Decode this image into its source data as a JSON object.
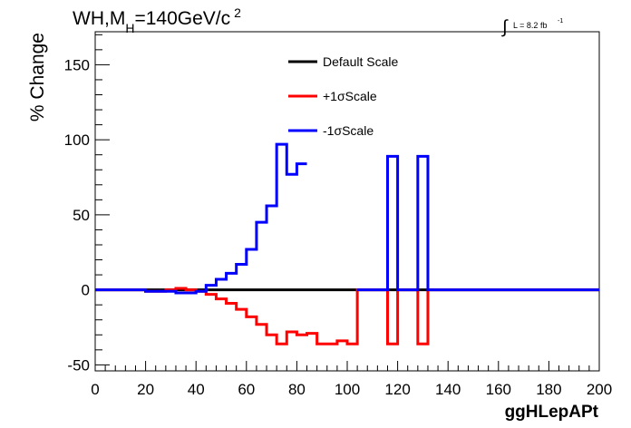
{
  "title_parts": {
    "main": "WH,M",
    "sub": "H",
    "rest": "=140GeV/c",
    "sup": "2"
  },
  "lumi": {
    "integral": "∫",
    "text": "L = 8.2 fb",
    "sup": "-1"
  },
  "chart_data": {
    "type": "line",
    "xlabel": "ggHLepAPt",
    "ylabel": "% Change",
    "xlim": [
      0,
      200
    ],
    "ylim": [
      -54,
      172
    ],
    "x_ticks": [
      0,
      20,
      40,
      60,
      80,
      100,
      120,
      140,
      160,
      180,
      200
    ],
    "y_ticks": [
      -50,
      0,
      50,
      100,
      150
    ],
    "legend_position": "top-center",
    "series": [
      {
        "name": "Default Scale",
        "color": "#000000",
        "bin_edges": [
          0,
          200
        ],
        "values": [
          0
        ]
      },
      {
        "name": "+1σScale",
        "color": "#ff0000",
        "bin_edges": [
          0,
          20,
          24,
          28,
          32,
          36,
          40,
          44,
          48,
          52,
          56,
          60,
          64,
          68,
          72,
          76,
          80,
          84,
          88,
          92,
          96,
          100,
          104,
          116,
          120,
          128,
          132,
          200
        ],
        "values": [
          0,
          -1,
          -1,
          0,
          1,
          0,
          -1,
          -3,
          -6,
          -9,
          -13,
          -18,
          -23,
          -30,
          -36,
          -28,
          -30,
          -29,
          -36,
          -36,
          -34,
          -36,
          0,
          -36,
          0,
          -36,
          0
        ]
      },
      {
        "name": "-1σScale",
        "color": "#0000ff",
        "bin_edges": [
          0,
          20,
          24,
          28,
          32,
          36,
          40,
          44,
          48,
          52,
          56,
          60,
          64,
          68,
          72,
          76,
          80,
          84,
          104,
          116,
          120,
          128,
          132,
          200
        ],
        "values": [
          0,
          -1,
          -1,
          -1,
          -2,
          -2,
          -1,
          3,
          7,
          11,
          17,
          27,
          45,
          56,
          97,
          77,
          84,
          89,
          0,
          89,
          0,
          89,
          0
        ],
        "bin_visible": [
          true,
          true,
          true,
          true,
          true,
          true,
          true,
          true,
          true,
          true,
          true,
          true,
          true,
          true,
          true,
          true,
          true,
          false,
          true,
          true,
          true,
          true,
          true
        ]
      }
    ]
  }
}
